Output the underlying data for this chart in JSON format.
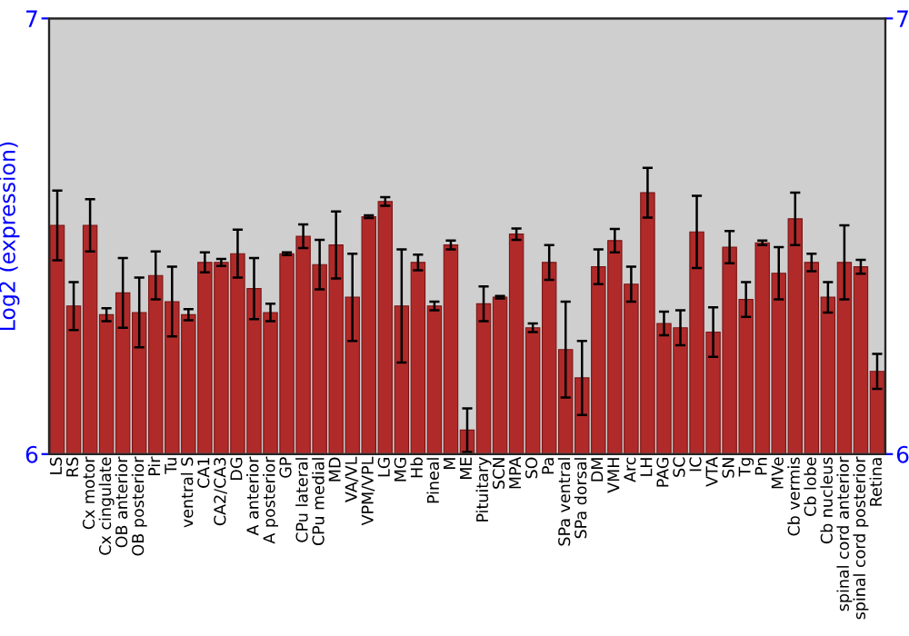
{
  "chart_data": {
    "type": "bar",
    "ylabel": "Log2 (expression)",
    "categories": [
      "LS",
      "RS",
      "Cx motor",
      "Cx cingulate",
      "OB anterior",
      "OB posterior",
      "Pir",
      "Tu",
      "ventral S",
      "CA1",
      "CA2/CA3",
      "DG",
      "A anterior",
      "A posterior",
      "GP",
      "CPu lateral",
      "CPu medial",
      "MD",
      "VA/VL",
      "VPM/VPL",
      "LG",
      "MG",
      "Hb",
      "Pineal",
      "M",
      "ME",
      "Pituitary",
      "SCN",
      "MPA",
      "SO",
      "Pa",
      "SPa ventral",
      "SPa dorsal",
      "DM",
      "VMH",
      "Arc",
      "LH",
      "PAG",
      "SC",
      "IC",
      "VTA",
      "SN",
      "Tg",
      "Pn",
      "MVe",
      "Cb vermis",
      "Cb lobe",
      "Cb nucleus",
      "spinal cord anterior",
      "spinal cord posterior",
      "Retina"
    ],
    "series": [
      {
        "color": "#b02a2a",
        "values": [
          6.525,
          6.34,
          6.525,
          6.32,
          6.37,
          6.325,
          6.41,
          6.35,
          6.32,
          6.44,
          6.44,
          6.46,
          6.38,
          6.325,
          6.46,
          6.5,
          6.435,
          6.48,
          6.36,
          6.545,
          6.58,
          6.34,
          6.44,
          6.34,
          6.48,
          6.055,
          6.345,
          6.36,
          6.505,
          6.29,
          6.44,
          6.24,
          6.175,
          6.43,
          6.49,
          6.39,
          6.6,
          6.3,
          6.29,
          6.51,
          6.28,
          6.475,
          6.355,
          6.485,
          6.415,
          6.54,
          6.44,
          6.36,
          6.44,
          6.43,
          6.19
        ],
        "errors": [
          0.08,
          0.055,
          0.06,
          0.015,
          0.08,
          0.08,
          0.055,
          0.08,
          0.013,
          0.023,
          0.008,
          0.055,
          0.07,
          0.02,
          0.003,
          0.027,
          0.057,
          0.077,
          0.1,
          0.003,
          0.01,
          0.13,
          0.018,
          0.01,
          0.01,
          0.05,
          0.04,
          0.003,
          0.013,
          0.01,
          0.04,
          0.11,
          0.085,
          0.04,
          0.027,
          0.04,
          0.057,
          0.027,
          0.04,
          0.083,
          0.057,
          0.037,
          0.04,
          0.005,
          0.06,
          0.06,
          0.02,
          0.035,
          0.085,
          0.016,
          0.04
        ]
      }
    ],
    "ylim": [
      6,
      7
    ],
    "yticks": [
      6,
      7
    ],
    "y2lim": [
      6,
      7
    ],
    "y2ticks": [
      6,
      7
    ]
  }
}
